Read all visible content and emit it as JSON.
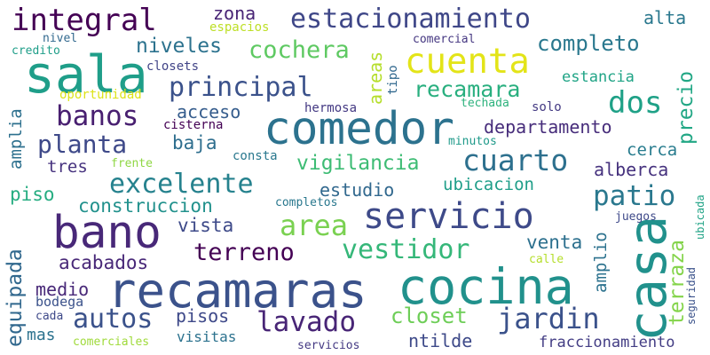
{
  "words": [
    {
      "text": "recamaras",
      "color": "#3b528b"
    },
    {
      "text": "cocina",
      "color": "#21918c"
    },
    {
      "text": "comedor",
      "color": "#2c728e"
    },
    {
      "text": "sala",
      "color": "#1f9e89"
    },
    {
      "text": "bano",
      "color": "#482878"
    },
    {
      "text": "casa",
      "color": "#21918c"
    },
    {
      "text": "servicio",
      "color": "#3e4a89"
    },
    {
      "text": "cuenta",
      "color": "#e3e418"
    },
    {
      "text": "estacionamiento",
      "color": "#3f4788"
    },
    {
      "text": "integral",
      "color": "#440154"
    },
    {
      "text": "principal",
      "color": "#3b528b"
    },
    {
      "text": "completo",
      "color": "#2a788e"
    },
    {
      "text": "excelente",
      "color": "#26828e"
    },
    {
      "text": "cuarto",
      "color": "#2d708e"
    },
    {
      "text": "jardin",
      "color": "#3b528b"
    },
    {
      "text": "area",
      "color": "#7ad151"
    },
    {
      "text": "banos",
      "color": "#481f70"
    },
    {
      "text": "cochera",
      "color": "#5ec962"
    },
    {
      "text": "planta",
      "color": "#3e4989"
    },
    {
      "text": "dos",
      "color": "#1fa187"
    },
    {
      "text": "recamara",
      "color": "#29af7f"
    },
    {
      "text": "autos",
      "color": "#3b528b"
    },
    {
      "text": "lavado",
      "color": "#482576"
    },
    {
      "text": "vestidor",
      "color": "#35b779"
    },
    {
      "text": "terreno",
      "color": "#440154"
    },
    {
      "text": "patio",
      "color": "#2a788e"
    },
    {
      "text": "niveles",
      "color": "#2c728e"
    },
    {
      "text": "vigilancia",
      "color": "#3dbc74"
    },
    {
      "text": "departamento",
      "color": "#472d7b"
    },
    {
      "text": "closet",
      "color": "#6ece58"
    },
    {
      "text": "pisos",
      "color": "#3e4989"
    },
    {
      "text": "construccion",
      "color": "#21918c"
    },
    {
      "text": "acabados",
      "color": "#482878"
    },
    {
      "text": "terraza",
      "color": "#84d44b"
    },
    {
      "text": "equipada",
      "color": "#31688e"
    },
    {
      "text": "ntilde",
      "color": "#3e4a89"
    },
    {
      "text": "baja",
      "color": "#2e6e8e"
    },
    {
      "text": "estudio",
      "color": "#31688e"
    },
    {
      "text": "ubicacion",
      "color": "#1f9e89"
    },
    {
      "text": "venta",
      "color": "#2d708e"
    },
    {
      "text": "vista",
      "color": "#3e4a89"
    },
    {
      "text": "tres",
      "color": "#46327e"
    },
    {
      "text": "alberca",
      "color": "#46327e"
    },
    {
      "text": "piso",
      "color": "#26ad81"
    },
    {
      "text": "acceso",
      "color": "#365d8d"
    },
    {
      "text": "alta",
      "color": "#2a788e"
    },
    {
      "text": "zona",
      "color": "#482475"
    },
    {
      "text": "estancia",
      "color": "#20a486"
    },
    {
      "text": "medio",
      "color": "#482878"
    },
    {
      "text": "mas",
      "color": "#2c728e"
    },
    {
      "text": "cerca",
      "color": "#287c8e"
    },
    {
      "text": "areas",
      "color": "#b5de2b"
    },
    {
      "text": "precio",
      "color": "#22a785"
    },
    {
      "text": "amplio",
      "color": "#2c728e"
    },
    {
      "text": "amplia",
      "color": "#2d708e"
    },
    {
      "text": "fraccionamiento",
      "color": "#433d84"
    },
    {
      "text": "consta",
      "color": "#2a788e"
    },
    {
      "text": "minutos",
      "color": "#1f9a8a"
    },
    {
      "text": "bodega",
      "color": "#3b528b"
    },
    {
      "text": "visitas",
      "color": "#2c728e"
    },
    {
      "text": "hermosa",
      "color": "#443983"
    },
    {
      "text": "comercial",
      "color": "#453781"
    },
    {
      "text": "closets",
      "color": "#414487"
    },
    {
      "text": "espacios",
      "color": "#bddf26"
    },
    {
      "text": "oportunidad",
      "color": "#dde318"
    },
    {
      "text": "tipo",
      "color": "#31688e"
    },
    {
      "text": "techada",
      "color": "#2db27d"
    },
    {
      "text": "solo",
      "color": "#443a83"
    },
    {
      "text": "cisterna",
      "color": "#440154"
    },
    {
      "text": "frente",
      "color": "#8fd744"
    },
    {
      "text": "completos",
      "color": "#2a788e"
    },
    {
      "text": "juegos",
      "color": "#3e4989"
    },
    {
      "text": "calle",
      "color": "#b5de2b"
    },
    {
      "text": "seguridad",
      "color": "#3b528b"
    },
    {
      "text": "ubicada",
      "color": "#20a386"
    },
    {
      "text": "cada",
      "color": "#3e4989"
    },
    {
      "text": "comerciales",
      "color": "#9fda3a"
    },
    {
      "text": "servicios",
      "color": "#443983"
    },
    {
      "text": "nivel",
      "color": "#31688e"
    },
    {
      "text": "credito",
      "color": "#1f9e89"
    }
  ]
}
